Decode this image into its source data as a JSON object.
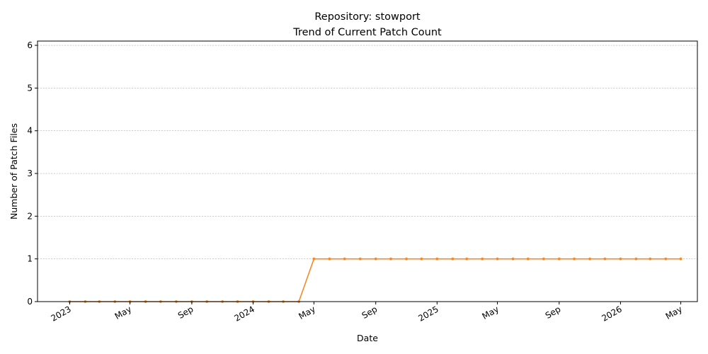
{
  "chart_data": {
    "type": "line",
    "title_line1": "Repository: stowport",
    "title_line2": "Trend of Current Patch Count",
    "xlabel": "Date",
    "ylabel": "Number of Patch Files",
    "xlim": [
      "2022-10-29",
      "2026-06-03"
    ],
    "ylim": [
      0,
      6.1
    ],
    "y_ticks": [
      0,
      1,
      2,
      3,
      4,
      5,
      6
    ],
    "x_ticks": [
      {
        "date": "2023-01-01",
        "label": "2023"
      },
      {
        "date": "2023-05-01",
        "label": "May"
      },
      {
        "date": "2023-09-01",
        "label": "Sep"
      },
      {
        "date": "2024-01-01",
        "label": "2024"
      },
      {
        "date": "2024-05-01",
        "label": "May"
      },
      {
        "date": "2024-09-01",
        "label": "Sep"
      },
      {
        "date": "2025-01-01",
        "label": "2025"
      },
      {
        "date": "2025-05-01",
        "label": "May"
      },
      {
        "date": "2025-09-01",
        "label": "Sep"
      },
      {
        "date": "2026-01-01",
        "label": "2026"
      },
      {
        "date": "2026-05-01",
        "label": "May"
      }
    ],
    "grid": "y",
    "series": [
      {
        "color": "#f28a2c",
        "points": [
          {
            "x": "2023-01-01",
            "y": 0
          },
          {
            "x": "2023-02-01",
            "y": 0
          },
          {
            "x": "2023-03-01",
            "y": 0
          },
          {
            "x": "2023-04-01",
            "y": 0
          },
          {
            "x": "2023-05-01",
            "y": 0
          },
          {
            "x": "2023-06-01",
            "y": 0
          },
          {
            "x": "2023-07-01",
            "y": 0
          },
          {
            "x": "2023-08-01",
            "y": 0
          },
          {
            "x": "2023-09-01",
            "y": 0
          },
          {
            "x": "2023-10-01",
            "y": 0
          },
          {
            "x": "2023-11-01",
            "y": 0
          },
          {
            "x": "2023-12-01",
            "y": 0
          },
          {
            "x": "2024-01-01",
            "y": 0
          },
          {
            "x": "2024-02-01",
            "y": 0
          },
          {
            "x": "2024-03-01",
            "y": 0
          },
          {
            "x": "2024-04-01",
            "y": 0
          },
          {
            "x": "2024-05-01",
            "y": 1
          },
          {
            "x": "2024-06-01",
            "y": 1
          },
          {
            "x": "2024-07-01",
            "y": 1
          },
          {
            "x": "2024-08-01",
            "y": 1
          },
          {
            "x": "2024-09-01",
            "y": 1
          },
          {
            "x": "2024-10-01",
            "y": 1
          },
          {
            "x": "2024-11-01",
            "y": 1
          },
          {
            "x": "2024-12-01",
            "y": 1
          },
          {
            "x": "2025-01-01",
            "y": 1
          },
          {
            "x": "2025-02-01",
            "y": 1
          },
          {
            "x": "2025-03-01",
            "y": 1
          },
          {
            "x": "2025-04-01",
            "y": 1
          },
          {
            "x": "2025-05-01",
            "y": 1
          },
          {
            "x": "2025-06-01",
            "y": 1
          },
          {
            "x": "2025-07-01",
            "y": 1
          },
          {
            "x": "2025-08-01",
            "y": 1
          },
          {
            "x": "2025-09-01",
            "y": 1
          },
          {
            "x": "2025-10-01",
            "y": 1
          },
          {
            "x": "2025-11-01",
            "y": 1
          },
          {
            "x": "2025-12-01",
            "y": 1
          },
          {
            "x": "2026-01-01",
            "y": 1
          },
          {
            "x": "2026-02-01",
            "y": 1
          },
          {
            "x": "2026-03-01",
            "y": 1
          },
          {
            "x": "2026-04-01",
            "y": 1
          },
          {
            "x": "2026-05-01",
            "y": 1
          }
        ]
      }
    ]
  }
}
